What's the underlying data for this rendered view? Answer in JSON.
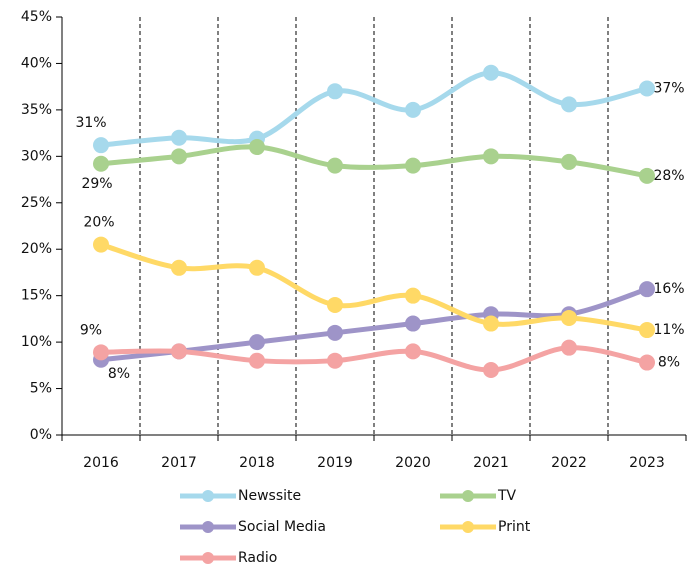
{
  "chart_data": {
    "type": "line",
    "categories": [
      "2016",
      "2017",
      "2018",
      "2019",
      "2020",
      "2021",
      "2022",
      "2023"
    ],
    "series": [
      {
        "name": "Newssite",
        "color": "#a6d9ec",
        "values": [
          31.2,
          32,
          31.9,
          37,
          35,
          39,
          35.6,
          37.3
        ],
        "value_labels": [
          "31%",
          null,
          null,
          null,
          null,
          null,
          null,
          "37%"
        ]
      },
      {
        "name": "TV",
        "color": "#a9d18e",
        "values": [
          29.2,
          30,
          31,
          29,
          29,
          30,
          29.4,
          27.9
        ],
        "value_labels": [
          "29%",
          null,
          null,
          null,
          null,
          null,
          null,
          "28%"
        ]
      },
      {
        "name": "Social Media",
        "color": "#9e94c8",
        "values": [
          8.1,
          9,
          10,
          11,
          12,
          13,
          13,
          15.7
        ],
        "value_labels": [
          "8%",
          null,
          null,
          null,
          null,
          null,
          null,
          "16%"
        ]
      },
      {
        "name": "Print",
        "color": "#ffd966",
        "values": [
          20.5,
          18,
          18,
          14,
          15,
          12,
          12.6,
          11.3
        ],
        "value_labels": [
          "20%",
          null,
          null,
          null,
          null,
          null,
          null,
          "11%"
        ]
      },
      {
        "name": "Radio",
        "color": "#f4a3a3",
        "values": [
          8.9,
          9,
          8,
          8,
          9,
          7,
          9.4,
          7.8
        ],
        "value_labels": [
          "9%",
          null,
          null,
          null,
          null,
          null,
          null,
          "8%"
        ]
      }
    ],
    "ylim": [
      0,
      45
    ],
    "yticks": [
      {
        "value": 0,
        "label": "0%"
      },
      {
        "value": 5,
        "label": "5%"
      },
      {
        "value": 10,
        "label": "10%"
      },
      {
        "value": 15,
        "label": "15%"
      },
      {
        "value": 20,
        "label": "20%"
      },
      {
        "value": 25,
        "label": "25%"
      },
      {
        "value": 30,
        "label": "30%"
      },
      {
        "value": 35,
        "label": "35%"
      },
      {
        "value": 40,
        "label": "40%"
      },
      {
        "value": 45,
        "label": "45%"
      }
    ],
    "smooth": true,
    "legend": "bottom"
  }
}
